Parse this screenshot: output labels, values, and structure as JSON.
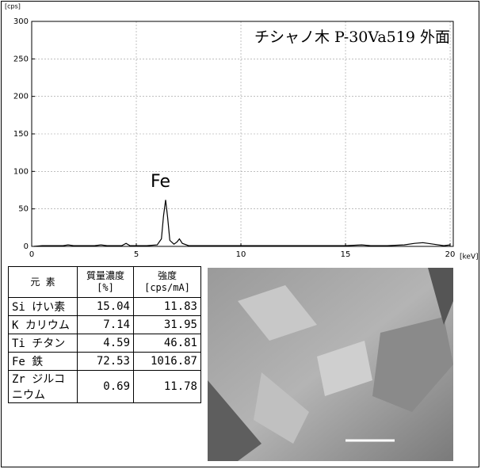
{
  "chart_data": {
    "type": "line",
    "title": "チシャノ木 P-30Va519 外面",
    "xlabel": "[keV]",
    "ylabel": "[cps]",
    "annotation": "Fe",
    "x": [
      0.1,
      0.5,
      1.0,
      1.5,
      1.74,
      2.0,
      2.5,
      3.0,
      3.31,
      3.6,
      4.0,
      4.3,
      4.51,
      4.7,
      5.0,
      5.5,
      6.0,
      6.2,
      6.3,
      6.4,
      6.5,
      6.6,
      6.8,
      6.95,
      7.06,
      7.2,
      7.5,
      8.0,
      9.0,
      10.0,
      11.0,
      12.0,
      13.0,
      14.0,
      15.0,
      15.77,
      16.2,
      17.0,
      17.8,
      18.3,
      18.7,
      19.2,
      19.7,
      20.0
    ],
    "values": [
      0,
      1,
      1,
      1,
      2,
      1,
      1,
      1,
      2,
      1,
      1,
      1,
      4,
      1,
      1,
      1,
      2,
      10,
      40,
      62,
      38,
      8,
      3,
      6,
      10,
      4,
      1,
      1,
      1,
      1,
      1,
      1,
      1,
      1,
      1,
      2,
      1,
      1,
      2,
      4,
      5,
      3,
      1,
      2
    ],
    "color": "#000000",
    "xlim": [
      0,
      20.15
    ],
    "ylim": [
      0,
      300
    ],
    "xticks": [
      0,
      5,
      10,
      15,
      20
    ],
    "yticks": [
      0,
      50,
      100,
      150,
      200,
      250,
      300
    ],
    "grid": true
  },
  "table": {
    "header": [
      [
        "元 素"
      ],
      [
        "質量濃度",
        "[%]"
      ],
      [
        "強度",
        "[cps/mA]"
      ]
    ],
    "rows": [
      [
        "Si けい素",
        15.04,
        11.83
      ],
      [
        "K カリウム",
        7.14,
        31.95
      ],
      [
        "Ti チタン",
        4.59,
        46.81
      ],
      [
        "Fe 鉄",
        72.53,
        1016.87
      ],
      [
        "Zr ジルコニウム",
        0.69,
        11.78
      ]
    ]
  }
}
